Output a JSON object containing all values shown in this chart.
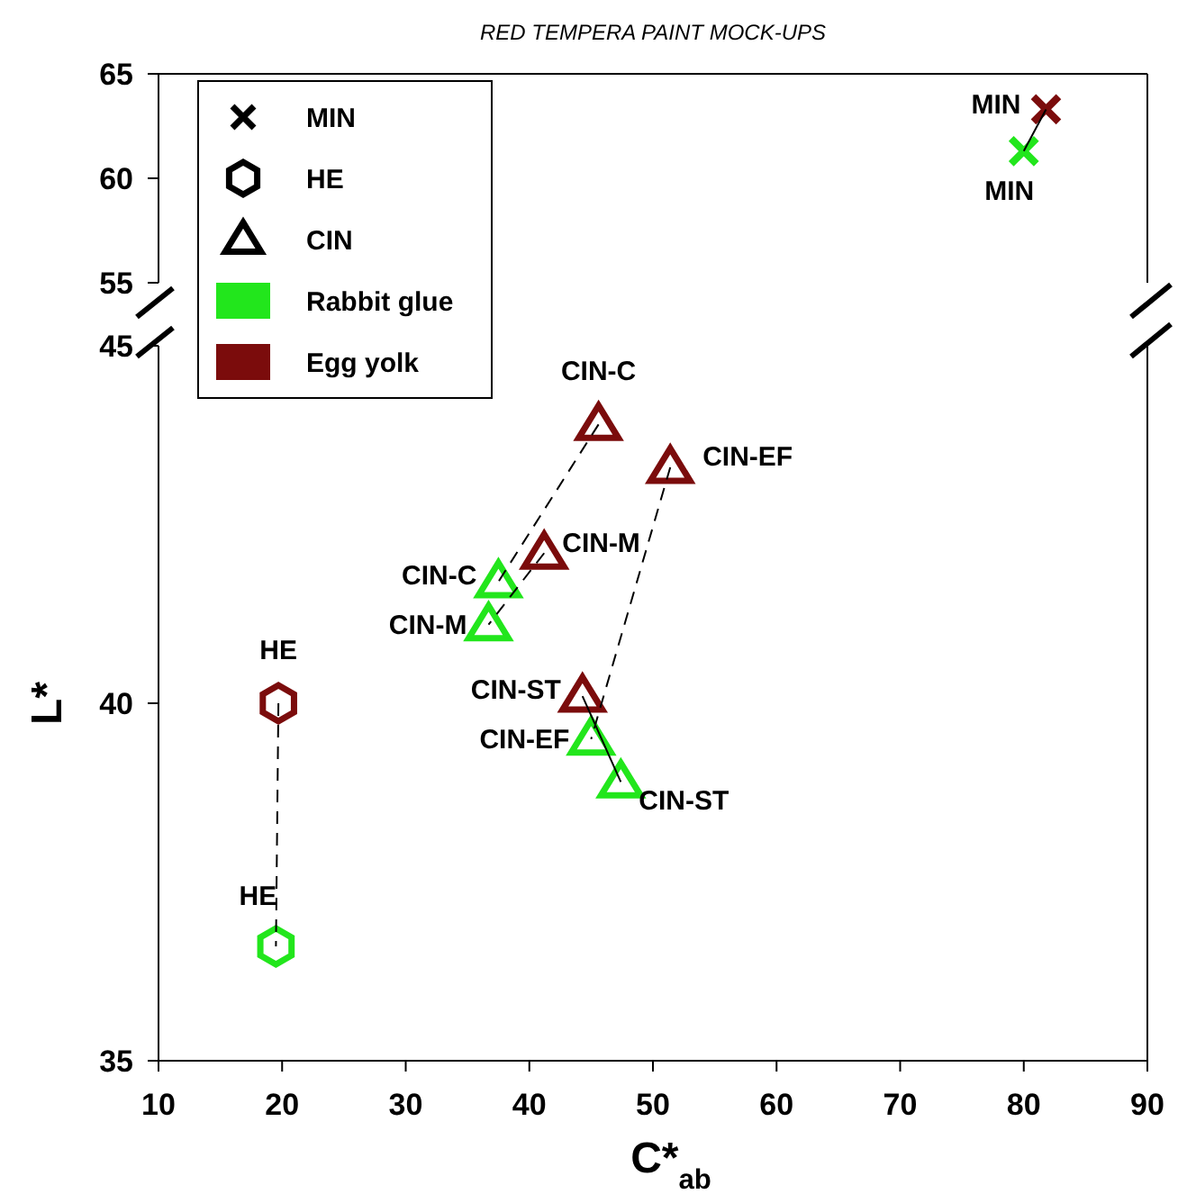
{
  "chart_data": [
    {
      "type": "scatter",
      "title": "RED TEMPERA PAINT MOCK-UPS",
      "xlim": [
        10,
        90
      ],
      "ylim": [
        55,
        65
      ],
      "yticks": [
        55,
        60,
        65
      ],
      "tick_labels": "y",
      "series": [
        {
          "marker": "cross",
          "x": [
            81.8,
            80.0
          ],
          "values": [
            63.3,
            61.3
          ],
          "colors": [
            "#7b0c0c",
            "#22e61c"
          ]
        },
        {
          "type": "line",
          "line_style": "solid",
          "color": "#000000",
          "x": [
            81.8,
            80.0
          ],
          "values": [
            63.3,
            61.3
          ]
        }
      ],
      "annotations": [
        {
          "text": "MIN",
          "x": 81.8,
          "y": 63.3
        },
        {
          "text": "MIN",
          "x": 80.0,
          "y": 61.3
        }
      ]
    },
    {
      "type": "scatter",
      "xlabel": "C*$_{ab}$",
      "ylabel": "L*",
      "xlim": [
        10,
        90
      ],
      "xticks": [
        10,
        20,
        30,
        40,
        50,
        60,
        70,
        80,
        90
      ],
      "ylim": [
        35,
        45
      ],
      "yticks": [
        35,
        40,
        45
      ],
      "legend": "top left",
      "series": [
        {
          "name": "MIN",
          "marker": "cross"
        },
        {
          "name": "HE"
        },
        {
          "name": "CIN",
          "marker": "triangle"
        },
        {
          "x": [
            19.7,
            19.5
          ],
          "values": [
            40.0,
            36.6
          ],
          "colors": [
            "#7b0c0c",
            "#22e61c"
          ]
        },
        {
          "marker": "triangle",
          "x": [
            45.6,
            51.4,
            41.2,
            44.3,
            37.5,
            36.7,
            45.0,
            47.4
          ],
          "values": [
            43.9,
            43.3,
            42.1,
            40.1,
            41.7,
            41.1,
            39.5,
            38.9
          ],
          "colors": [
            "#7b0c0c",
            "#7b0c0c",
            "#7b0c0c",
            "#7b0c0c",
            "#22e61c",
            "#22e61c",
            "#22e61c",
            "#22e61c"
          ]
        },
        {
          "name": "Rabbit glue",
          "color": "#22e61c"
        },
        {
          "name": "Egg yolk",
          "color": "#7b0c0c"
        },
        {
          "type": "line",
          "line_style": "dashed",
          "color": "#000000",
          "x": [
            19.7,
            19.5
          ],
          "values": [
            40.0,
            36.6
          ]
        },
        {
          "type": "line",
          "line_style": "dashed",
          "color": "#000000",
          "x": [
            45.6,
            37.5
          ],
          "values": [
            43.9,
            41.7
          ]
        },
        {
          "type": "line",
          "line_style": "dashed",
          "color": "#000000",
          "x": [
            41.2,
            36.7
          ],
          "values": [
            42.1,
            41.1
          ]
        },
        {
          "type": "line",
          "line_style": "dashed",
          "color": "#000000",
          "x": [
            51.4,
            45.0
          ],
          "values": [
            43.3,
            39.5
          ]
        },
        {
          "type": "line",
          "line_style": "solid",
          "color": "#000000",
          "x": [
            44.3,
            47.4
          ],
          "values": [
            40.1,
            38.9
          ]
        }
      ],
      "annotations": [
        {
          "text": "HE",
          "x": 19.7,
          "y": 40.0
        },
        {
          "text": "HE",
          "x": 19.5,
          "y": 36.6
        },
        {
          "text": "CIN-C",
          "x": 45.6,
          "y": 43.9
        },
        {
          "text": "CIN-EF",
          "x": 51.4,
          "y": 43.3
        },
        {
          "text": "CIN-M",
          "x": 41.2,
          "y": 42.1
        },
        {
          "text": "CIN-C",
          "x": 37.5,
          "y": 41.7
        },
        {
          "text": "CIN-M",
          "x": 36.7,
          "y": 41.1
        },
        {
          "text": "CIN-ST",
          "x": 44.3,
          "y": 40.1
        },
        {
          "text": "CIN-EF",
          "x": 45.0,
          "y": 39.5
        },
        {
          "text": "CIN-ST",
          "x": 47.4,
          "y": 38.9
        }
      ]
    }
  ]
}
